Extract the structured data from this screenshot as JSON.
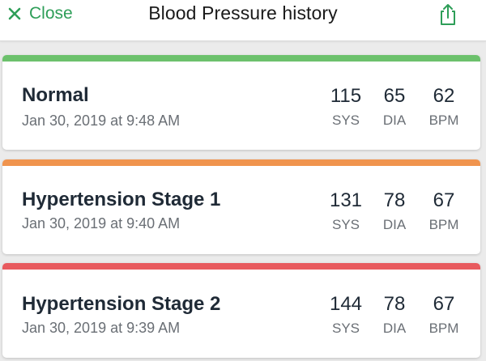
{
  "header": {
    "close_label": "Close",
    "title": "Blood Pressure history",
    "accent_color": "#2e9e58",
    "close_icon": "x-icon",
    "share_icon": "share-icon"
  },
  "units": {
    "sys": "SYS",
    "dia": "DIA",
    "bpm": "BPM"
  },
  "readings": [
    {
      "category": "Normal",
      "timestamp": "Jan 30, 2019 at 9:48 AM",
      "sys": "115",
      "dia": "65",
      "bpm": "62",
      "color": "#6cc16c"
    },
    {
      "category": "Hypertension Stage 1",
      "timestamp": "Jan 30, 2019 at 9:40 AM",
      "sys": "131",
      "dia": "78",
      "bpm": "67",
      "color": "#f0944e"
    },
    {
      "category": "Hypertension Stage 2",
      "timestamp": "Jan 30, 2019 at 9:39 AM",
      "sys": "144",
      "dia": "78",
      "bpm": "67",
      "color": "#e85a5e"
    }
  ]
}
